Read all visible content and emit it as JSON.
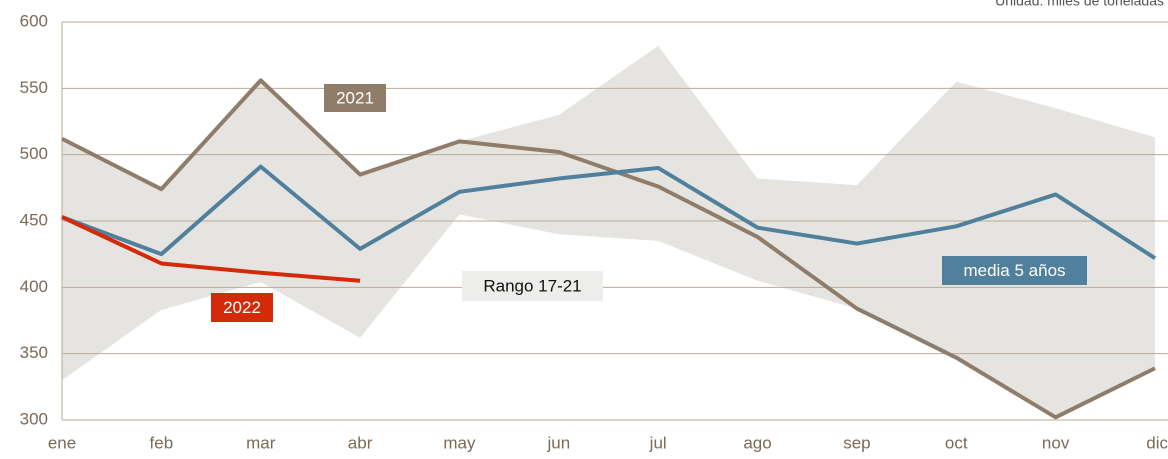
{
  "chart_data": {
    "type": "line",
    "note": "Unidad: miles de toneladas",
    "categories": [
      "ene",
      "feb",
      "mar",
      "abr",
      "may",
      "jun",
      "jul",
      "ago",
      "sep",
      "oct",
      "nov",
      "dic"
    ],
    "ylim": [
      300,
      600
    ],
    "yticks": [
      300,
      350,
      400,
      450,
      500,
      550,
      600
    ],
    "grid": true,
    "range": {
      "name": "Rango 17-21",
      "color": "#e6e4e1",
      "low": [
        330,
        383,
        404,
        362,
        455,
        440,
        435,
        405,
        384,
        347,
        302,
        340
      ],
      "high": [
        512,
        474,
        556,
        485,
        510,
        530,
        582,
        482,
        477,
        555,
        535,
        513
      ]
    },
    "series": [
      {
        "name": "2021",
        "color": "#8f7d6a",
        "values": [
          512,
          474,
          556,
          485,
          510,
          502,
          476,
          438,
          384,
          347,
          302,
          339
        ]
      },
      {
        "name": "media 5 años",
        "color": "#50809c",
        "values": [
          453,
          425,
          491,
          429,
          472,
          482,
          490,
          445,
          433,
          446,
          470,
          422
        ]
      },
      {
        "name": "2022",
        "color": "#d42a0a",
        "values": [
          453,
          418,
          411,
          405,
          null,
          null,
          null,
          null,
          null,
          null,
          null,
          null
        ]
      }
    ]
  }
}
